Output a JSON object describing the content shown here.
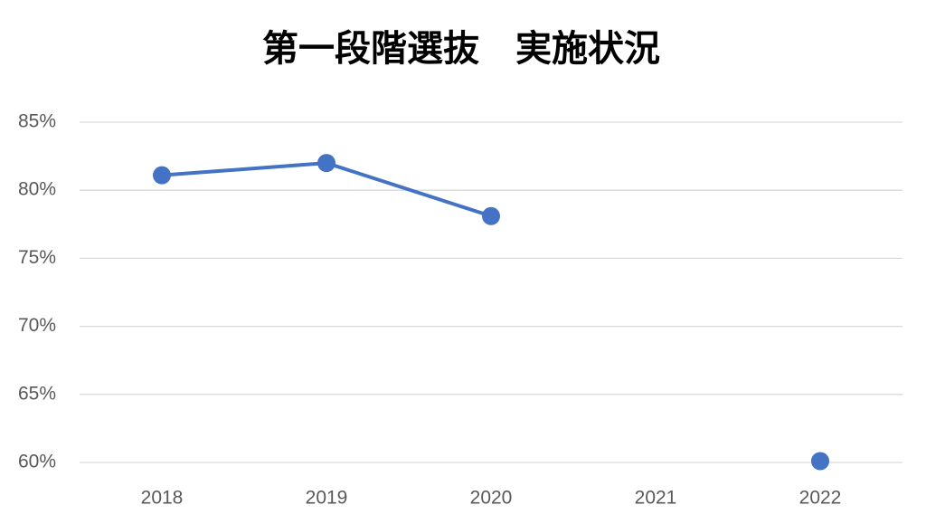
{
  "chart_data": {
    "type": "line",
    "title": "第一段階選抜　実施状況",
    "categories": [
      "2018",
      "2019",
      "2020",
      "2021",
      "2022"
    ],
    "series": [
      {
        "color": "#4472c4",
        "values": [
          81.1,
          82.0,
          78.1,
          null,
          60.1
        ]
      }
    ],
    "ylim": [
      60,
      85
    ],
    "yticks": [
      {
        "value": 60,
        "label": "60%"
      },
      {
        "value": 65,
        "label": "65%"
      },
      {
        "value": 70,
        "label": "70%"
      },
      {
        "value": 75,
        "label": "75%"
      },
      {
        "value": 80,
        "label": "80%"
      },
      {
        "value": 85,
        "label": "85%"
      }
    ],
    "grid": true
  }
}
